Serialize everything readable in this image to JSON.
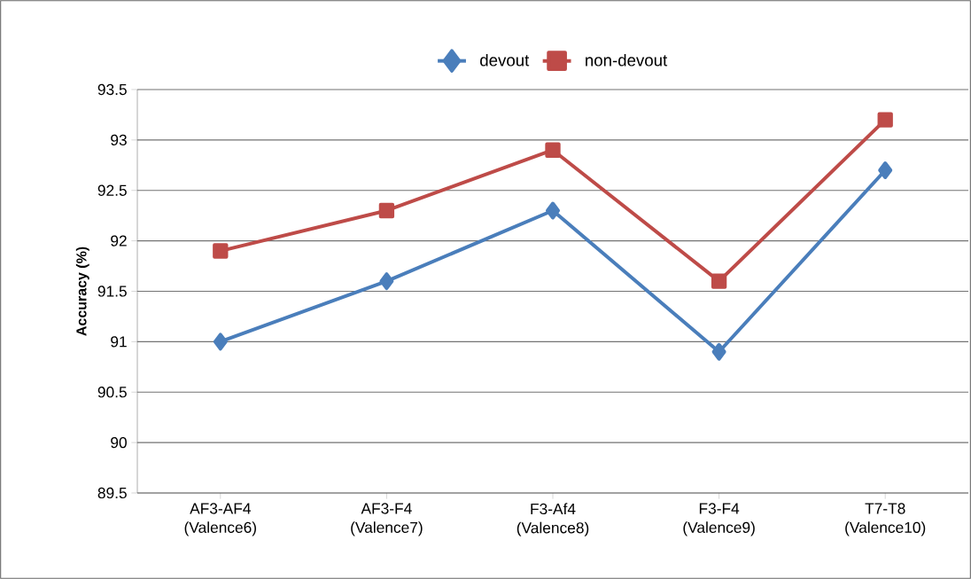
{
  "chart_data": {
    "type": "line",
    "ylabel": "Accuracy (%)",
    "categories": [
      "AF3-AF4 (Valence6)",
      "AF3-F4 (Valence7)",
      "F3-Af4 (Valence8)",
      "F3-F4 (Valence9)",
      "T7-T8 (Valence10)"
    ],
    "series": [
      {
        "name": "devout",
        "color": "#4a7ebb",
        "marker": "diamond",
        "values": [
          91.0,
          91.6,
          92.3,
          90.9,
          92.7
        ]
      },
      {
        "name": "non-devout",
        "color": "#be4b48",
        "marker": "square",
        "values": [
          91.9,
          92.3,
          92.9,
          91.6,
          93.2
        ]
      }
    ],
    "ylim": [
      89.5,
      93.5
    ],
    "yticks": [
      89.5,
      90,
      90.5,
      91,
      91.5,
      92,
      92.5,
      93,
      93.5
    ],
    "grid": "y",
    "legend": "top",
    "line_style": "solid"
  }
}
